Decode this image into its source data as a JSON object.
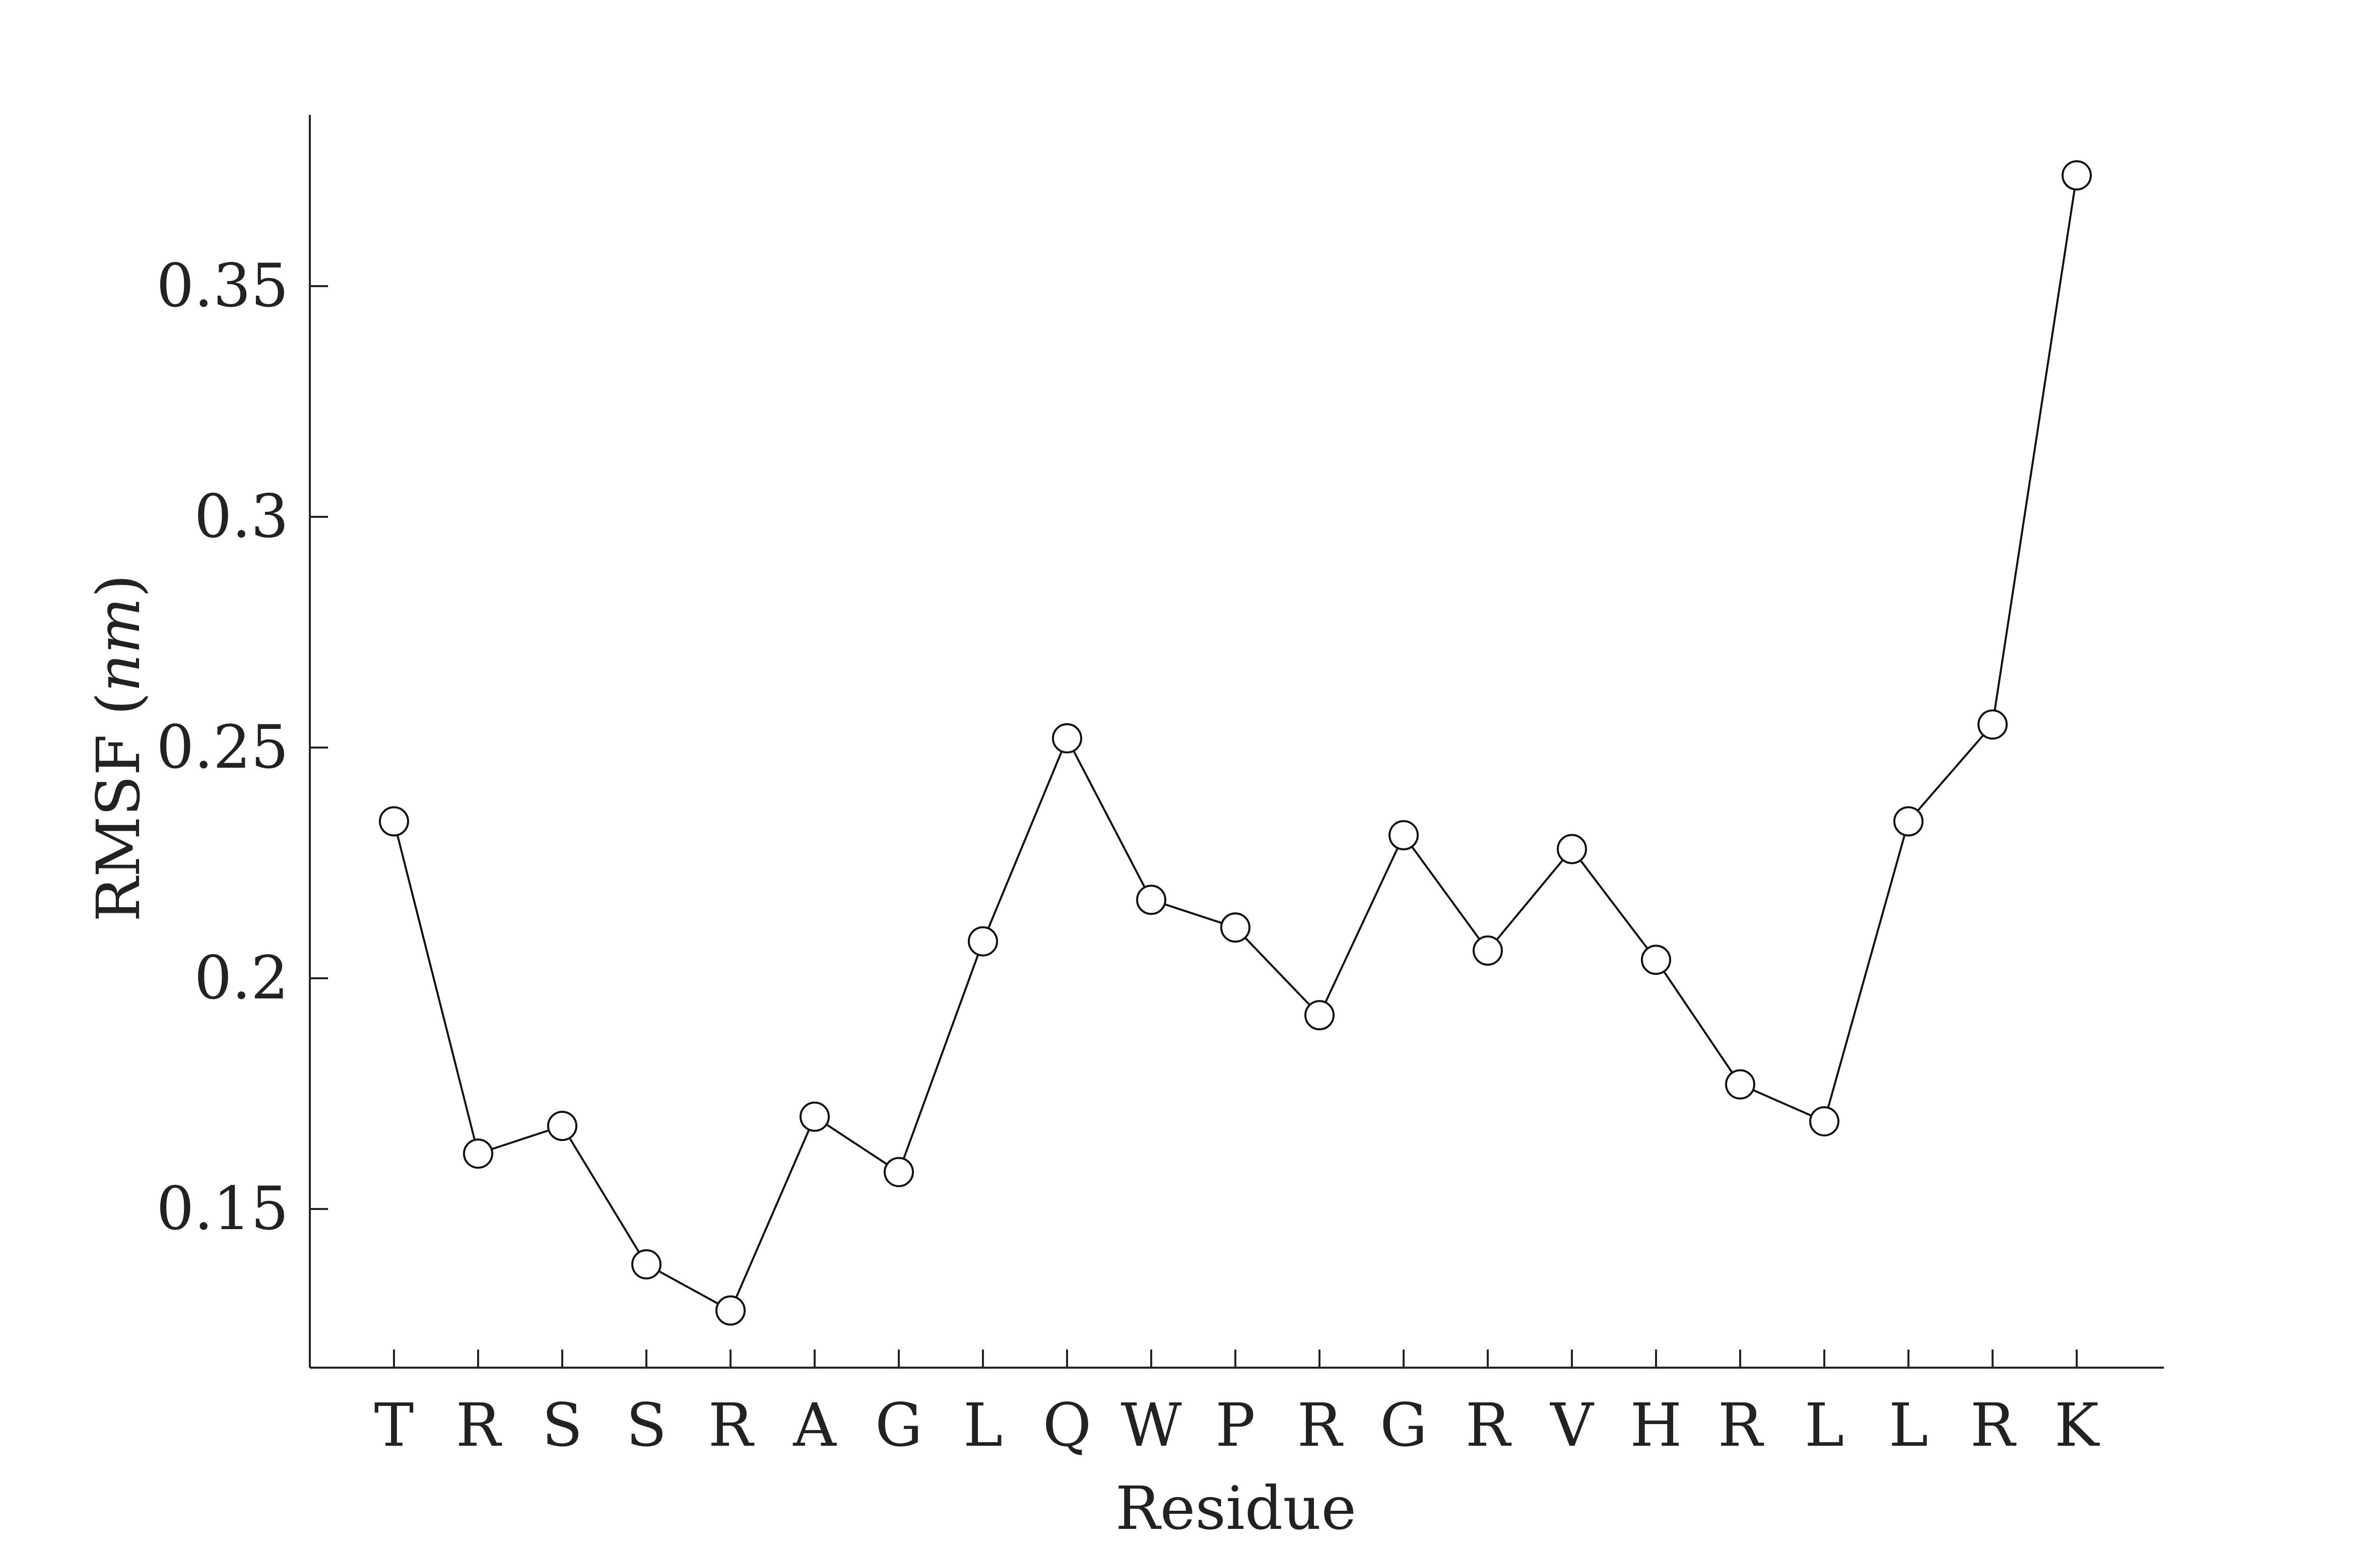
{
  "chart_data": {
    "type": "line",
    "categories": [
      "T",
      "R",
      "S",
      "S",
      "R",
      "A",
      "G",
      "L",
      "Q",
      "W",
      "P",
      "R",
      "G",
      "R",
      "V",
      "H",
      "R",
      "L",
      "L",
      "R",
      "K"
    ],
    "values": [
      0.234,
      0.162,
      0.168,
      0.138,
      0.128,
      0.17,
      0.158,
      0.208,
      0.252,
      0.217,
      0.211,
      0.192,
      0.231,
      0.206,
      0.228,
      0.204,
      0.177,
      0.169,
      0.234,
      0.255,
      0.374
    ],
    "xlabel": "Residue",
    "ylabel": "RMSF",
    "ylabel_unit": "nm",
    "ylim": [
      0.115,
      0.4
    ],
    "yticks": [
      "0.15",
      "0.2",
      "0.25",
      "0.3",
      "0.35"
    ],
    "grid": false,
    "line_color": "#111111",
    "marker": "open-circle"
  }
}
